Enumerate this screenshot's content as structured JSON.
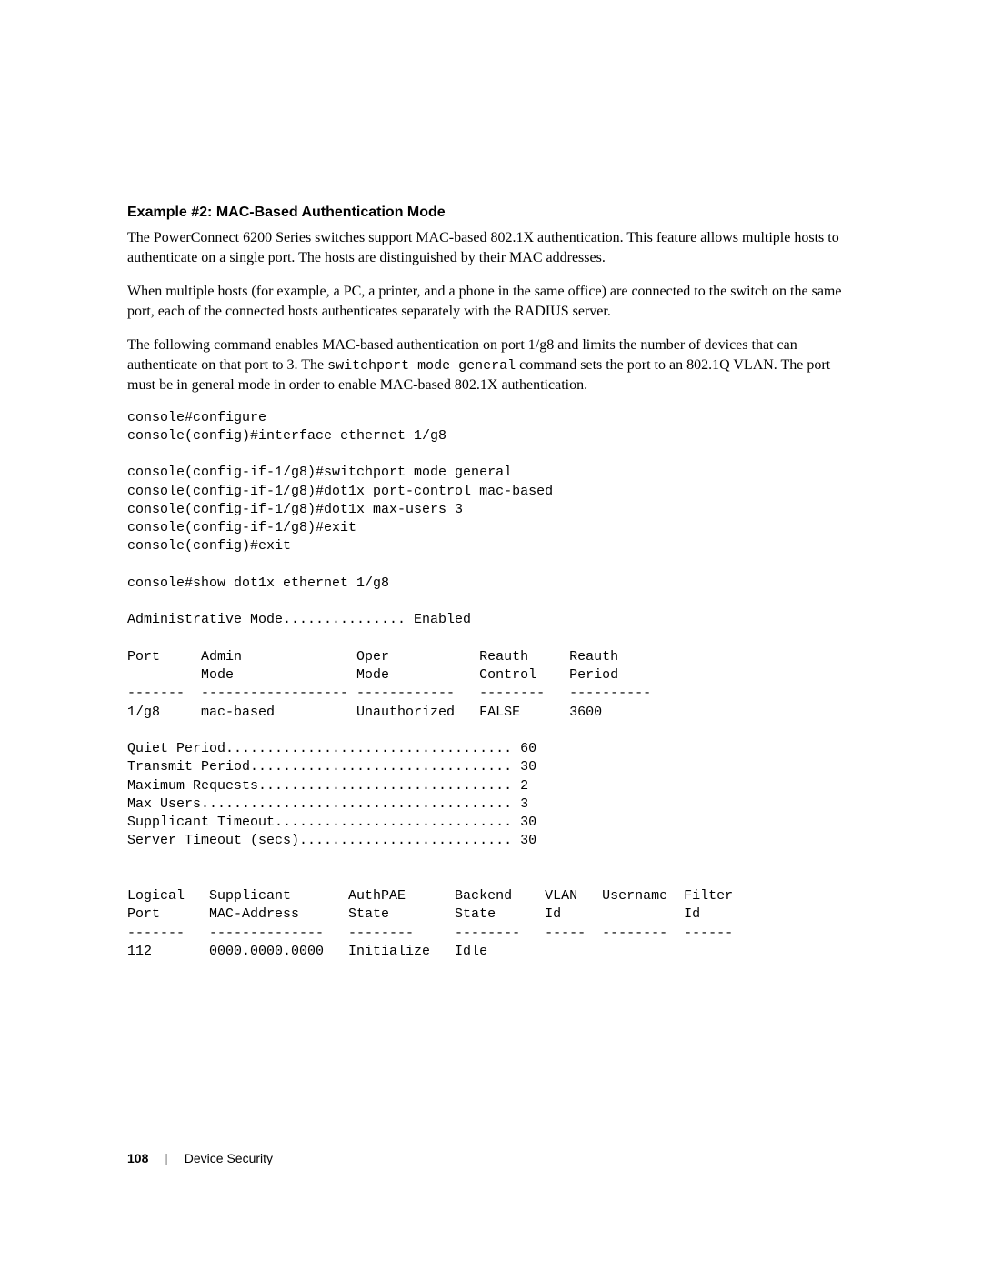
{
  "heading": "Example #2: MAC-Based Authentication Mode",
  "para1": "The PowerConnect 6200 Series switches support MAC-based 802.1X authentication. This feature allows multiple hosts to authenticate on a single port. The hosts are distinguished by their MAC addresses.",
  "para2": "When multiple hosts (for example, a PC, a printer, and a phone in the same office) are connected to the switch on the same port, each of the connected hosts authenticates separately with the RADIUS server.",
  "para3a": "The following command enables MAC-based authentication on port 1/g8 and limits the number of devices that can authenticate on that port to 3. The ",
  "para3_mono": "switchport mode general",
  "para3b": " command sets the port to an 802.1Q VLAN. The port must be in general mode in order to enable MAC-based 802.1X authentication.",
  "code": "console#configure\nconsole(config)#interface ethernet 1/g8\n\nconsole(config-if-1/g8)#switchport mode general\nconsole(config-if-1/g8)#dot1x port-control mac-based\nconsole(config-if-1/g8)#dot1x max-users 3\nconsole(config-if-1/g8)#exit\nconsole(config)#exit\n\nconsole#show dot1x ethernet 1/g8\n\nAdministrative Mode............... Enabled\n\nPort     Admin              Oper           Reauth     Reauth\n         Mode               Mode           Control    Period\n-------  ------------------ ------------   --------   ----------\n1/g8     mac-based          Unauthorized   FALSE      3600\n\nQuiet Period................................... 60\nTransmit Period................................ 30\nMaximum Requests............................... 2\nMax Users...................................... 3\nSupplicant Timeout............................. 30\nServer Timeout (secs).......................... 30\n\n\nLogical   Supplicant       AuthPAE      Backend    VLAN   Username  Filter\nPort      MAC-Address      State        State      Id               Id\n-------   --------------   --------     --------   -----  --------  ------\n112       0000.0000.0000   Initialize   Idle",
  "footer": {
    "page": "108",
    "section": "Device Security"
  },
  "style": {
    "background": "#ffffff",
    "text_color": "#000000",
    "body_font": "Georgia",
    "mono_font": "Courier New",
    "heading_font": "Arial",
    "heading_fontsize": 16,
    "body_fontsize": 16,
    "code_fontsize": 15,
    "footer_fontsize": 14
  }
}
